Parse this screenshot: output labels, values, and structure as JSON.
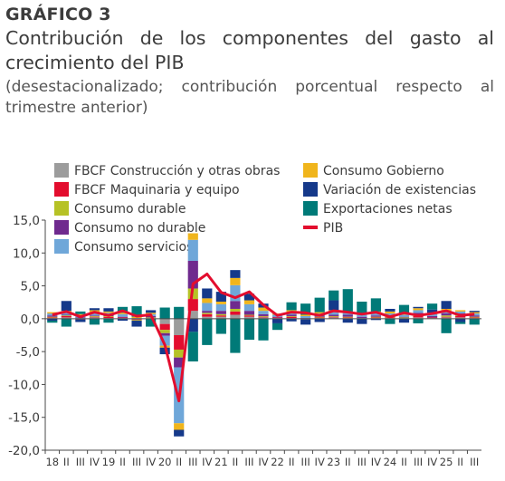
{
  "header": {
    "kicker": "GRÁFICO 3",
    "title": "Contribución de los componentes del gasto al crecimiento del PIB",
    "subtitle": "(desestacionalizado; contribución porcentual respecto al trimestre anterior)"
  },
  "chart_data": {
    "type": "bar",
    "stacked": true,
    "ylim": [
      -20,
      15
    ],
    "yticks": [
      "15,0",
      "10,0",
      "5,0",
      "0,0",
      "-5,0",
      "-10,0",
      "-15,0",
      "-20,0"
    ],
    "categories": [
      "18 I",
      "II",
      "III",
      "IV",
      "19 I",
      "II",
      "III",
      "IV",
      "20 I",
      "II",
      "III",
      "IV",
      "21 I",
      "II",
      "III",
      "IV",
      "22 I",
      "II",
      "III",
      "IV",
      "23 I",
      "II",
      "III",
      "IV",
      "24 I",
      "II",
      "III",
      "IV",
      "25 I",
      "II",
      "III"
    ],
    "category_labels": [
      "18",
      "II",
      "III",
      "IV",
      "19",
      "II",
      "III",
      "IV",
      "20",
      "II",
      "III",
      "IV",
      "21",
      "II",
      "III",
      "IV",
      "22",
      "II",
      "III",
      "IV",
      "23",
      "II",
      "III",
      "IV",
      "24",
      "II",
      "III",
      "IV",
      "25",
      "II",
      "III"
    ],
    "legend_position": "top",
    "series": [
      {
        "name": "FBCF Construcción y otras obras",
        "color": "#9c9c9c",
        "values": [
          0.1,
          0.2,
          0.1,
          0.2,
          0.1,
          0.1,
          -0.1,
          0.1,
          -0.8,
          -2.5,
          1.2,
          0.3,
          0.3,
          0.6,
          0.3,
          0.2,
          0.1,
          0.1,
          -0.1,
          0.1,
          0.2,
          0.1,
          0.1,
          0.1,
          0.1,
          0.1,
          0.2,
          0.1,
          0.2,
          0.2,
          0.1
        ]
      },
      {
        "name": "FBCF Maquinaria y equipo",
        "color": "#e30d2e",
        "values": [
          0.1,
          0.2,
          -0.1,
          0.1,
          0.2,
          0.1,
          -0.1,
          0.0,
          -0.9,
          -2.2,
          1.8,
          0.4,
          0.2,
          0.5,
          0.2,
          0.1,
          0.1,
          0.2,
          0.0,
          0.1,
          0.1,
          0.1,
          0.0,
          0.1,
          0.1,
          0.0,
          0.2,
          0.1,
          0.1,
          0.2,
          0.1
        ]
      },
      {
        "name": "Consumo durable",
        "color": "#b6c226",
        "values": [
          0.1,
          0.1,
          0.0,
          0.1,
          0.1,
          0.0,
          -0.1,
          0.1,
          -0.5,
          -1.2,
          1.6,
          0.2,
          0.2,
          0.4,
          0.1,
          0.1,
          0.0,
          0.1,
          0.0,
          0.1,
          0.1,
          0.1,
          0.0,
          0.1,
          0.1,
          0.1,
          0.2,
          0.0,
          0.2,
          0.2,
          0.1
        ]
      },
      {
        "name": "Consumo no durable",
        "color": "#6f2a8e",
        "values": [
          0.2,
          0.1,
          0.1,
          0.1,
          0.2,
          0.1,
          0.0,
          0.2,
          -0.4,
          -1.5,
          4.2,
          0.3,
          0.5,
          1.2,
          0.6,
          0.3,
          0.1,
          0.2,
          0.1,
          0.2,
          0.2,
          0.3,
          0.2,
          0.2,
          0.2,
          0.1,
          0.3,
          0.2,
          0.3,
          0.2,
          0.2
        ]
      },
      {
        "name": "Consumo servicios",
        "color": "#6fa7d9",
        "values": [
          0.3,
          0.4,
          0.3,
          0.5,
          0.3,
          0.4,
          0.1,
          0.3,
          -1.5,
          -8.5,
          3.2,
          1.2,
          1.0,
          2.4,
          1.0,
          0.5,
          0.3,
          0.4,
          0.3,
          0.3,
          0.4,
          0.3,
          0.3,
          0.3,
          0.3,
          0.3,
          0.4,
          0.3,
          0.4,
          0.3,
          0.3
        ]
      },
      {
        "name": "Consumo Gobierno",
        "color": "#f0b51c",
        "values": [
          0.2,
          0.2,
          0.2,
          0.3,
          0.2,
          0.2,
          0.2,
          0.2,
          -0.3,
          -1.0,
          1.0,
          0.7,
          0.4,
          1.1,
          0.6,
          0.5,
          0.2,
          0.3,
          0.2,
          0.2,
          0.3,
          0.2,
          0.2,
          0.3,
          0.3,
          0.2,
          0.3,
          0.2,
          0.3,
          0.2,
          0.2
        ]
      },
      {
        "name": "Variación de existencias",
        "color": "#15398a",
        "values": [
          -0.3,
          1.5,
          -0.4,
          0.3,
          0.5,
          -0.3,
          -0.9,
          0.4,
          -1.0,
          -1.0,
          -2.0,
          1.5,
          1.5,
          1.2,
          1.0,
          0.6,
          -0.7,
          -0.4,
          -0.8,
          -0.5,
          1.5,
          -0.6,
          -0.8,
          -0.2,
          0.4,
          -0.6,
          0.2,
          0.5,
          1.2,
          -0.5,
          0.2
        ]
      },
      {
        "name": "Exportaciones netas",
        "color": "#007a78",
        "values": [
          -0.3,
          -1.2,
          0.4,
          -0.9,
          -0.6,
          0.9,
          1.6,
          -1.2,
          1.7,
          1.8,
          -4.5,
          -4.0,
          -2.3,
          -5.2,
          -3.2,
          -3.3,
          -1.0,
          1.2,
          1.7,
          2.2,
          1.5,
          3.4,
          1.8,
          2.0,
          -0.8,
          1.3,
          -0.7,
          0.9,
          -2.2,
          -0.3,
          -0.9
        ]
      }
    ],
    "line": {
      "name": "PIB",
      "color": "#e30d2e",
      "values": [
        0.6,
        1.1,
        0.3,
        1.0,
        0.5,
        1.2,
        0.4,
        0.6,
        -4.0,
        -12.5,
        5.3,
        6.8,
        4.0,
        3.2,
        4.1,
        2.1,
        0.5,
        1.0,
        0.9,
        0.5,
        1.2,
        1.0,
        0.7,
        1.0,
        0.3,
        0.9,
        0.5,
        0.8,
        1.2,
        0.5,
        0.7
      ]
    }
  }
}
